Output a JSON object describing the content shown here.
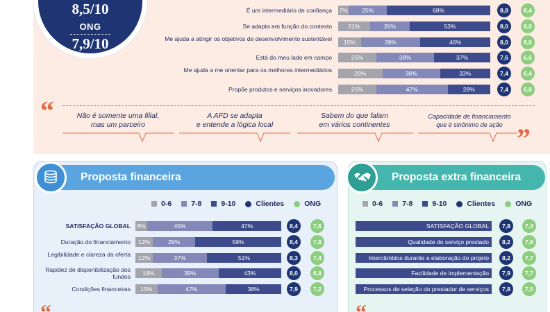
{
  "top_score": {
    "clients_score": "8,5/10",
    "ong_label": "ONG",
    "ong_score": "7,9/10"
  },
  "top_rows": [
    {
      "label": "É um intermediário de confiança",
      "segments": [
        "7%",
        "25%",
        "68%"
      ],
      "shares": [
        7,
        25,
        68
      ],
      "clientes": "8,8",
      "ong": "8,4"
    },
    {
      "label": "Se adapta em função do contexto",
      "segments": [
        "21%",
        "26%",
        "53%"
      ],
      "shares": [
        21,
        26,
        53
      ],
      "clientes": "8,0",
      "ong": "8,0"
    },
    {
      "label": "Me ajuda a atingir os objetivos de desenvolvimento sustentável",
      "segments": [
        "15%",
        "39%",
        "46%"
      ],
      "shares": [
        15,
        39,
        46
      ],
      "clientes": "8,0",
      "ong": "8,0"
    },
    {
      "label": "Está do meu lado em campo",
      "segments": [
        "25%",
        "38%",
        "37%"
      ],
      "shares": [
        25,
        38,
        37
      ],
      "clientes": "7,6",
      "ong": "6,6"
    },
    {
      "label": "Me ajuda a me orientar para os melhores intermediários",
      "segments": [
        "29%",
        "38%",
        "33%"
      ],
      "shares": [
        29,
        38,
        33
      ],
      "clientes": "7,4",
      "ong": "6,4"
    },
    {
      "label": "Propõe produtos e serviços inovadores",
      "segments": [
        "25%",
        "47%",
        "28%"
      ],
      "shares": [
        25,
        47,
        28
      ],
      "clientes": "7,4",
      "ong": "6,8"
    }
  ],
  "quotes": [
    {
      "line1": "Não é somente uma filial,",
      "line2": "mas um parceiro"
    },
    {
      "line1": "A AFD se adapta",
      "line2": "e entende a lógica local"
    },
    {
      "line1": "Sabem do que falam",
      "line2": "em vários continentes"
    },
    {
      "line1": "Capacidade de financiamento",
      "line2": "que é sinônimo de ação"
    }
  ],
  "financial": {
    "title": "Proposta financeira",
    "icon": "coins-icon",
    "legend": [
      "0-6",
      "7-8",
      "9-10",
      "Clientes",
      "ONG"
    ],
    "rows": [
      {
        "label": "SATISFAÇÃO GLOBAL",
        "bold": true,
        "segments": [
          "8%",
          "45%",
          "47%"
        ],
        "shares": [
          8,
          45,
          47
        ],
        "clientes": "8,4",
        "ong": "7,6"
      },
      {
        "label": "Duração do financiamento",
        "segments": [
          "12%",
          "29%",
          "59%"
        ],
        "shares": [
          12,
          29,
          59
        ],
        "clientes": "8,4",
        "ong": "7,8"
      },
      {
        "label": "Legibilidade e clareza da oferta",
        "segments": [
          "12%",
          "37%",
          "51%"
        ],
        "shares": [
          12,
          37,
          51
        ],
        "clientes": "8,3",
        "ong": "7,4"
      },
      {
        "label": "Rapidez de disponibilização dos fundos",
        "segments": [
          "18%",
          "39%",
          "43%"
        ],
        "shares": [
          18,
          39,
          43
        ],
        "clientes": "8,0",
        "ong": "6,8"
      },
      {
        "label": "Condições financeiras",
        "segments": [
          "15%",
          "47%",
          "38%"
        ],
        "shares": [
          15,
          47,
          38
        ],
        "clientes": "7,9",
        "ong": "7,2"
      }
    ]
  },
  "extra": {
    "title": "Proposta extra financeira",
    "icon": "handshake-icon",
    "legend": [
      "0-6",
      "7-8",
      "9-10",
      "Clientes",
      "ONG"
    ],
    "rows": [
      {
        "label": "SATISFAÇÃO GLOBAL",
        "clientes": "7,8",
        "ong": "7,4"
      },
      {
        "label": "Qualidade do serviço prestado",
        "clientes": "8,2",
        "ong": "7,9"
      },
      {
        "label": "Intercâmbios durante a elaboração do projeto",
        "clientes": "8,2",
        "ong": "7,7"
      },
      {
        "label": "Facilidade de implementação",
        "clientes": "7,9",
        "ong": "7,7"
      },
      {
        "label": "Processos de seleção do prestador de serviços",
        "clientes": "7,8",
        "ong": "7,5"
      }
    ]
  },
  "colors": {
    "navy": "#1f3472",
    "green": "#8ccd7e",
    "grey": "#a4a4ad",
    "mid": "#8488b8",
    "dark": "#3d4a8c",
    "orange": "#e06b45",
    "blue": "#5aa4df",
    "teal": "#45b6ad"
  }
}
